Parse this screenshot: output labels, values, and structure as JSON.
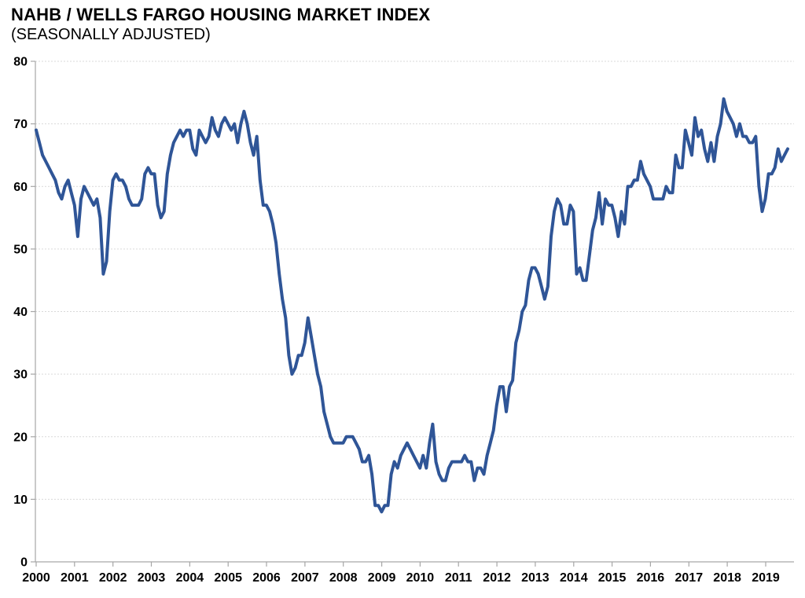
{
  "header": {
    "title": "NAHB / WELLS FARGO HOUSING MARKET INDEX",
    "subtitle": "(SEASONALLY ADJUSTED)"
  },
  "colors": {
    "line": "#2F5597",
    "grid": "#D9D9D9",
    "axis": "#A6A6A6",
    "text": "#000000"
  },
  "chart_data": {
    "type": "line",
    "title": "NAHB / WELLS FARGO HOUSING MARKET INDEX",
    "subtitle": "(SEASONALLY ADJUSTED)",
    "x_unit": "month",
    "start": "2000-01",
    "end": "2019-08",
    "x_tick_labels": [
      "2000",
      "2001",
      "2002",
      "2003",
      "2004",
      "2005",
      "2006",
      "2007",
      "2008",
      "2009",
      "2010",
      "2011",
      "2012",
      "2013",
      "2014",
      "2015",
      "2016",
      "2017",
      "2018",
      "2019"
    ],
    "ylim": [
      0,
      80
    ],
    "y_tick_step": 10,
    "y_tick_labels": [
      "0",
      "10",
      "20",
      "30",
      "40",
      "50",
      "60",
      "70",
      "80"
    ],
    "grid": true,
    "legend": false,
    "series": [
      {
        "name": "Housing Market Index (seasonally adjusted)",
        "values": [
          69,
          67,
          65,
          64,
          63,
          62,
          61,
          59,
          58,
          60,
          61,
          59,
          57,
          52,
          58,
          60,
          59,
          58,
          57,
          58,
          55,
          46,
          48,
          56,
          61,
          62,
          61,
          61,
          60,
          58,
          57,
          57,
          57,
          58,
          62,
          63,
          62,
          62,
          57,
          55,
          56,
          62,
          65,
          67,
          68,
          69,
          68,
          69,
          69,
          66,
          65,
          69,
          68,
          67,
          68,
          71,
          69,
          68,
          70,
          71,
          70,
          69,
          70,
          67,
          70,
          72,
          70,
          67,
          65,
          68,
          61,
          57,
          57,
          56,
          54,
          51,
          46,
          42,
          39,
          33,
          30,
          31,
          33,
          33,
          35,
          39,
          36,
          33,
          30,
          28,
          24,
          22,
          20,
          19,
          19,
          19,
          19,
          20,
          20,
          20,
          19,
          18,
          16,
          16,
          17,
          14,
          9,
          9,
          8,
          9,
          9,
          14,
          16,
          15,
          17,
          18,
          19,
          18,
          17,
          16,
          15,
          17,
          15,
          19,
          22,
          16,
          14,
          13,
          13,
          15,
          16,
          16,
          16,
          16,
          17,
          16,
          16,
          13,
          15,
          15,
          14,
          17,
          19,
          21,
          25,
          28,
          28,
          24,
          28,
          29,
          35,
          37,
          40,
          41,
          45,
          47,
          47,
          46,
          44,
          42,
          44,
          52,
          56,
          58,
          57,
          54,
          54,
          57,
          56,
          46,
          47,
          45,
          45,
          49,
          53,
          55,
          59,
          54,
          58,
          57,
          57,
          55,
          52,
          56,
          54,
          60,
          60,
          61,
          61,
          64,
          62,
          61,
          60,
          58,
          58,
          58,
          58,
          60,
          59,
          59,
          65,
          63,
          63,
          69,
          67,
          65,
          71,
          68,
          69,
          66,
          64,
          67,
          64,
          68,
          70,
          74,
          72,
          71,
          70,
          68,
          70,
          68,
          68,
          67,
          67,
          68,
          60,
          56,
          58,
          62,
          62,
          63,
          66,
          64,
          65,
          66
        ]
      }
    ]
  }
}
